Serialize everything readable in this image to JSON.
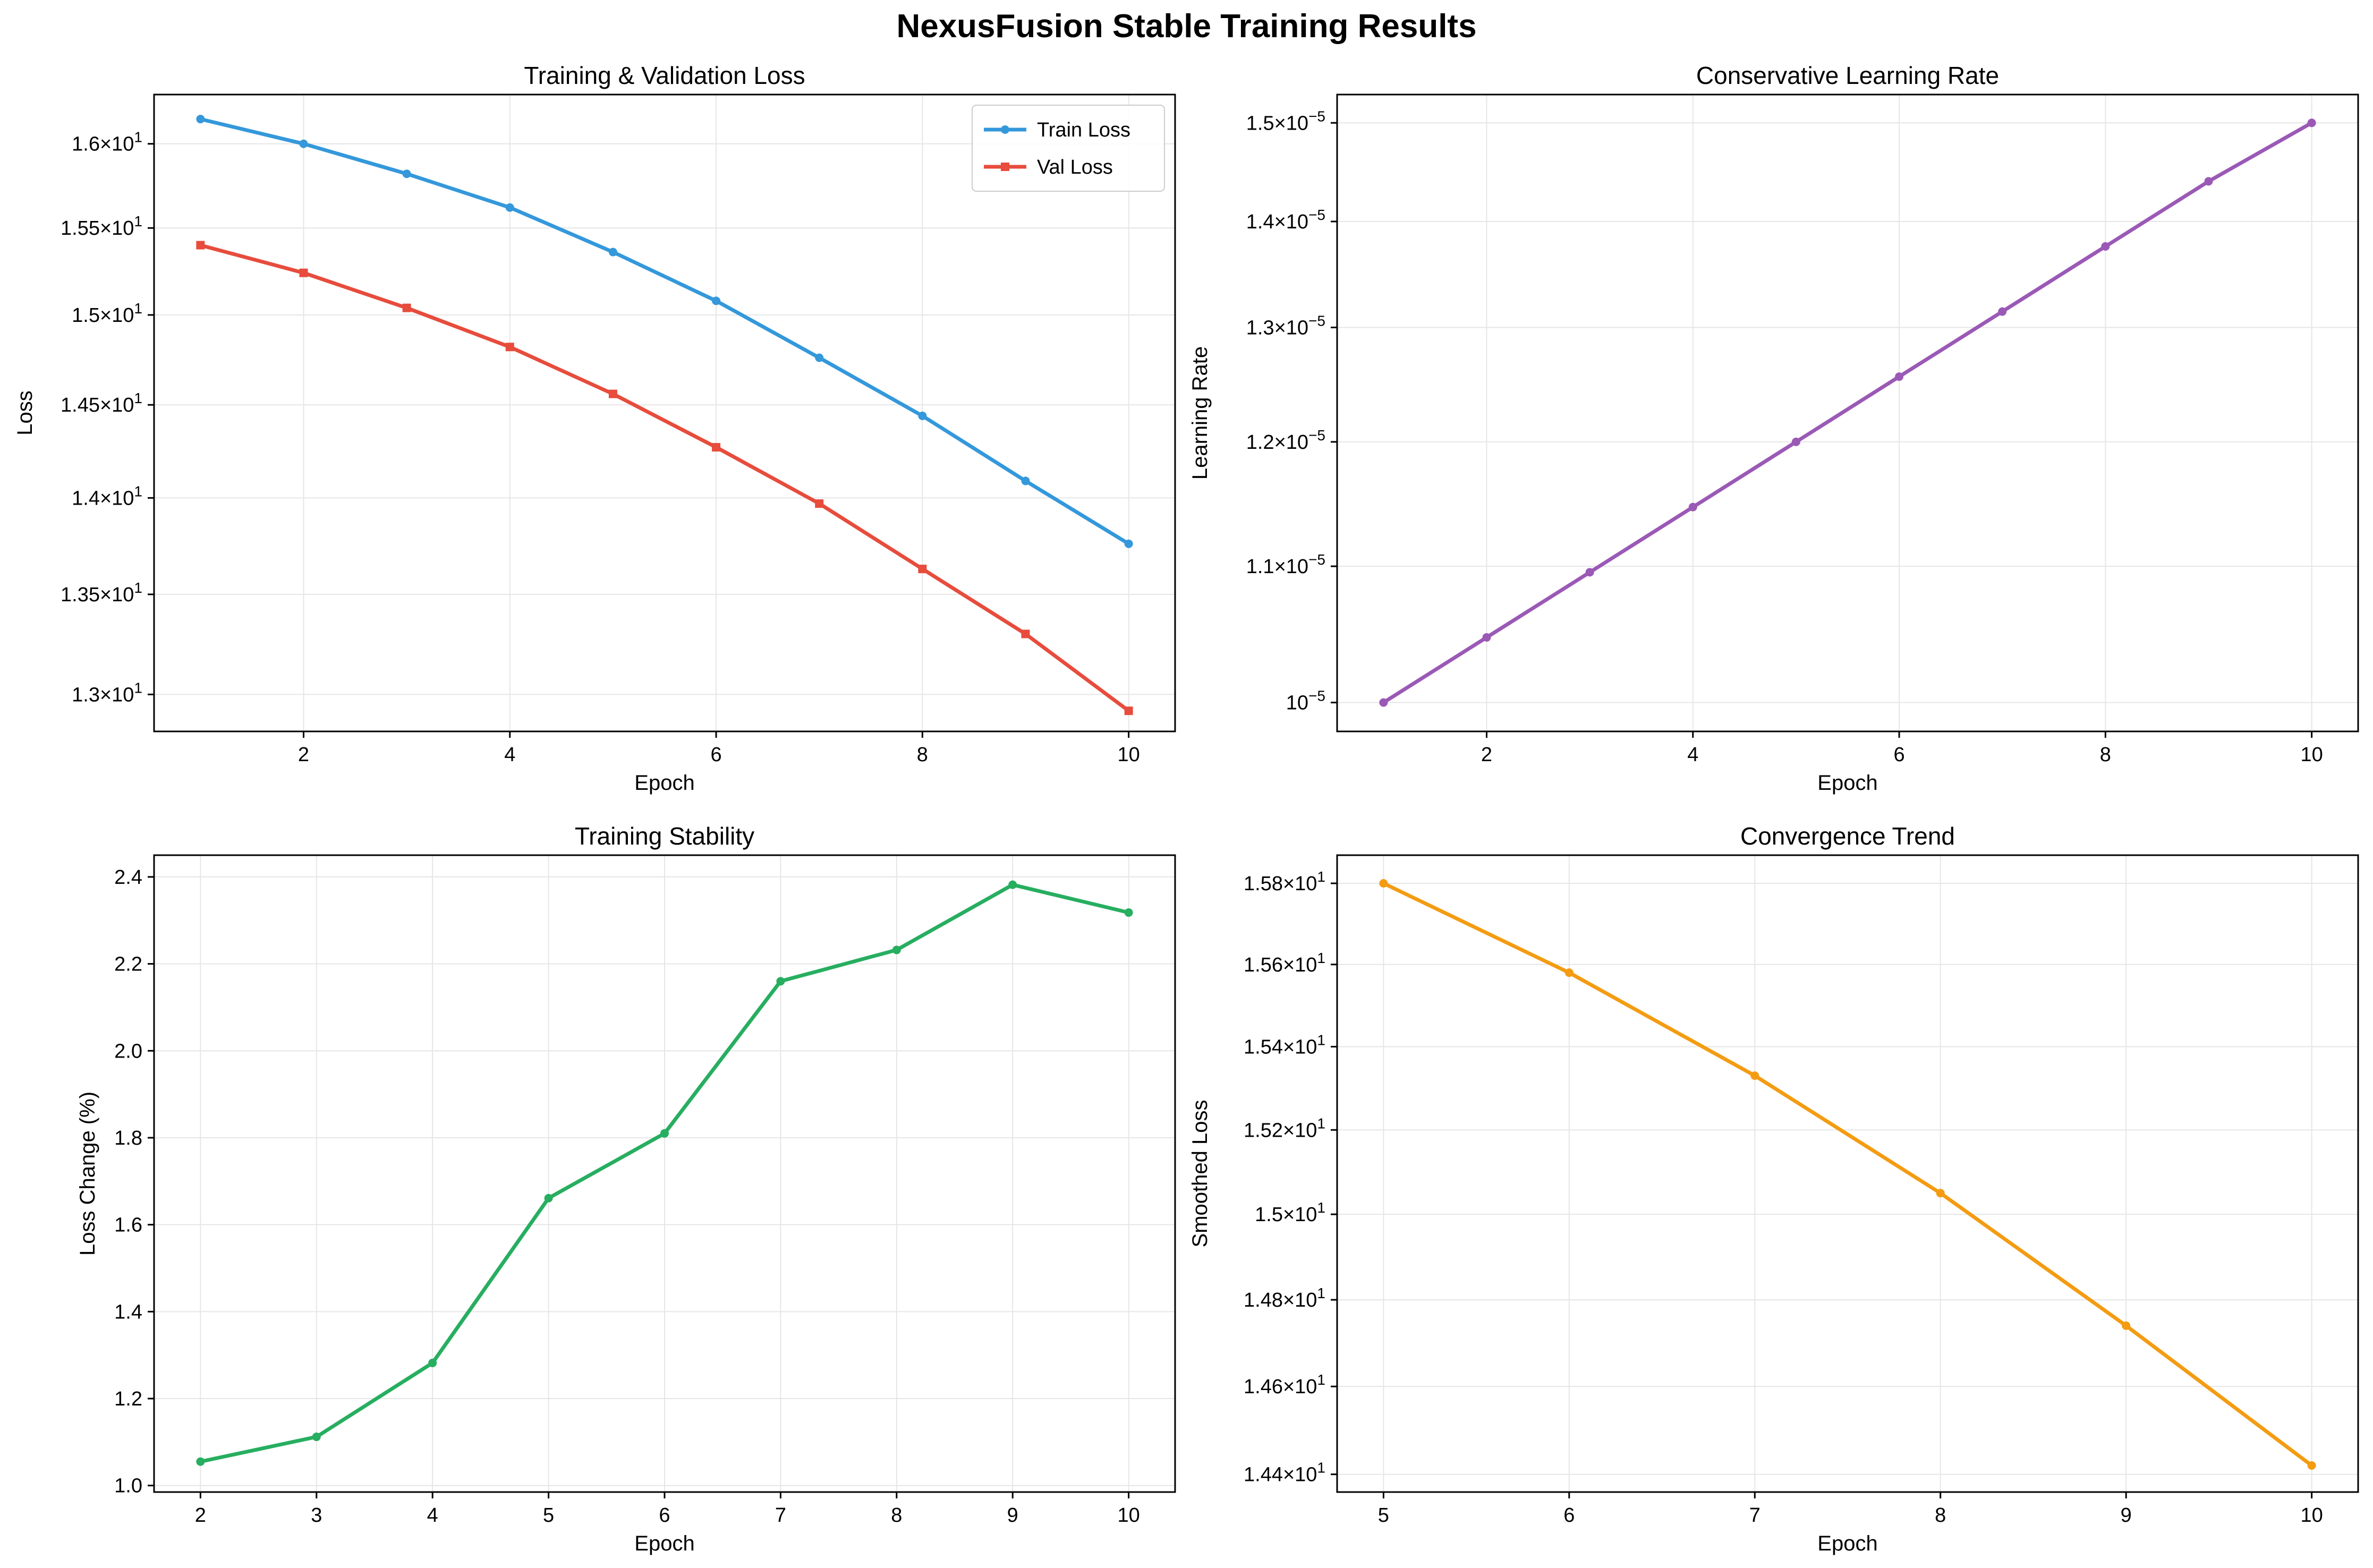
{
  "figure": {
    "title": "NexusFusion Stable Training Results"
  },
  "colors": {
    "train": "#3498db",
    "val": "#e74c3c",
    "lr": "#9b59b6",
    "stability": "#27ae60",
    "convergence": "#f39c12",
    "grid": "#e6e6e6"
  },
  "chart_data": [
    {
      "id": "loss",
      "type": "line",
      "title": "Training & Validation Loss",
      "xlabel": "Epoch",
      "ylabel": "Loss",
      "yscale": "log",
      "xlim": [
        0.55,
        10.45
      ],
      "ylim": [
        12.82,
        16.3
      ],
      "xticks": [
        2,
        4,
        6,
        8,
        10
      ],
      "xtick_labels": [
        "2",
        "4",
        "6",
        "8",
        "10"
      ],
      "yticks": [
        13.0,
        13.5,
        14.0,
        14.5,
        15.0,
        15.5,
        16.0
      ],
      "ytick_labels": [
        {
          "m": "1.3",
          "e": "1"
        },
        {
          "m": "1.35",
          "e": "1"
        },
        {
          "m": "1.4",
          "e": "1"
        },
        {
          "m": "1.45",
          "e": "1"
        },
        {
          "m": "1.5",
          "e": "1"
        },
        {
          "m": "1.55",
          "e": "1"
        },
        {
          "m": "1.6",
          "e": "1"
        }
      ],
      "grid": true,
      "legend": "top-right",
      "x": [
        1,
        2,
        3,
        4,
        5,
        6,
        7,
        8,
        9,
        10
      ],
      "series": [
        {
          "name": "Train Loss",
          "marker": "circle",
          "color": "#3498db",
          "values": [
            16.15,
            16.0,
            15.82,
            15.62,
            15.36,
            15.08,
            14.76,
            14.44,
            14.09,
            13.76
          ]
        },
        {
          "name": "Val Loss",
          "marker": "square",
          "color": "#e74c3c",
          "values": [
            15.4,
            15.24,
            15.04,
            14.82,
            14.56,
            14.27,
            13.97,
            13.63,
            13.3,
            12.92
          ]
        }
      ]
    },
    {
      "id": "lr",
      "type": "line",
      "title": "Conservative Learning Rate",
      "xlabel": "Epoch",
      "ylabel": "Learning Rate",
      "yscale": "log",
      "xlim": [
        0.55,
        10.45
      ],
      "ylim": [
        9.8e-06,
        1.53e-05
      ],
      "xticks": [
        2,
        4,
        6,
        8,
        10
      ],
      "xtick_labels": [
        "2",
        "4",
        "6",
        "8",
        "10"
      ],
      "yticks": [
        1e-05,
        1.1e-05,
        1.2e-05,
        1.3e-05,
        1.4e-05,
        1.5e-05
      ],
      "ytick_labels": [
        {
          "m": "",
          "e": "−5"
        },
        {
          "m": "1.1",
          "e": "−5"
        },
        {
          "m": "1.2",
          "e": "−5"
        },
        {
          "m": "1.3",
          "e": "−5"
        },
        {
          "m": "1.4",
          "e": "−5"
        },
        {
          "m": "1.5",
          "e": "−5"
        }
      ],
      "grid": true,
      "x": [
        1,
        2,
        3,
        4,
        5,
        6,
        7,
        8,
        9,
        10
      ],
      "series": [
        {
          "marker": "circle",
          "color": "#9b59b6",
          "values": [
            1e-05,
            1.0466e-05,
            1.0954e-05,
            1.1465e-05,
            1.2e-05,
            1.256e-05,
            1.3145e-05,
            1.3758e-05,
            1.4399e-05,
            1.5e-05
          ]
        }
      ]
    },
    {
      "id": "stability",
      "type": "line",
      "title": "Training Stability",
      "xlabel": "Epoch",
      "ylabel": "Loss Change (%)",
      "yscale": "linear",
      "xlim": [
        1.6,
        10.4
      ],
      "ylim": [
        0.985,
        2.45
      ],
      "xticks": [
        2,
        3,
        4,
        5,
        6,
        7,
        8,
        9,
        10
      ],
      "xtick_labels": [
        "2",
        "3",
        "4",
        "5",
        "6",
        "7",
        "8",
        "9",
        "10"
      ],
      "yticks": [
        1.0,
        1.2,
        1.4,
        1.6,
        1.8,
        2.0,
        2.2,
        2.4
      ],
      "ytick_labels": [
        "1.0",
        "1.2",
        "1.4",
        "1.6",
        "1.8",
        "2.0",
        "2.2",
        "2.4"
      ],
      "grid": true,
      "x": [
        2,
        3,
        4,
        5,
        6,
        7,
        8,
        9,
        10
      ],
      "series": [
        {
          "marker": "circle",
          "color": "#27ae60",
          "values": [
            1.055,
            1.112,
            1.282,
            1.661,
            1.81,
            2.16,
            2.232,
            2.382,
            2.318
          ]
        }
      ]
    },
    {
      "id": "convergence",
      "type": "line",
      "title": "Convergence Trend",
      "xlabel": "Epoch",
      "ylabel": "Smoothed Loss",
      "yscale": "log",
      "xlim": [
        4.75,
        10.25
      ],
      "ylim": [
        14.36,
        15.87
      ],
      "xticks": [
        5,
        6,
        7,
        8,
        9,
        10
      ],
      "xtick_labels": [
        "5",
        "6",
        "7",
        "8",
        "9",
        "10"
      ],
      "yticks": [
        14.4,
        14.6,
        14.8,
        15.0,
        15.2,
        15.4,
        15.6,
        15.8
      ],
      "ytick_labels": [
        {
          "m": "1.44",
          "e": "1"
        },
        {
          "m": "1.46",
          "e": "1"
        },
        {
          "m": "1.48",
          "e": "1"
        },
        {
          "m": "1.5",
          "e": "1"
        },
        {
          "m": "1.52",
          "e": "1"
        },
        {
          "m": "1.54",
          "e": "1"
        },
        {
          "m": "1.56",
          "e": "1"
        },
        {
          "m": "1.58",
          "e": "1"
        }
      ],
      "grid": true,
      "x": [
        5,
        6,
        7,
        8,
        9,
        10
      ],
      "series": [
        {
          "marker": "circle",
          "color": "#f39c12",
          "values": [
            15.8,
            15.58,
            15.33,
            15.05,
            14.74,
            14.42
          ]
        }
      ]
    }
  ]
}
